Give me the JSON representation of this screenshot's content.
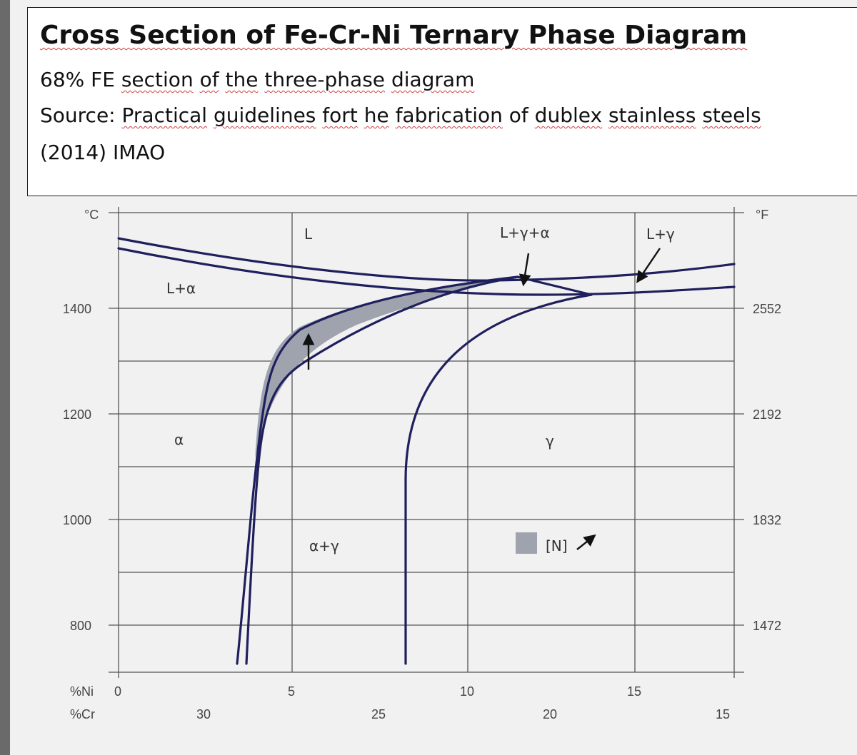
{
  "header": {
    "title": "Cross Section of Fe-Cr-Ni Ternary Phase Diagram",
    "subtitle_words": [
      "68% FE",
      "section",
      "of",
      "the",
      "three-phase",
      "diagram"
    ],
    "source_words": [
      "Source:",
      "Practical",
      "guidelines",
      "fort",
      "he",
      "fabrication",
      "of",
      "dublex",
      "stainless",
      "steels"
    ],
    "year_credit": "(2014) IMAO"
  },
  "diagram": {
    "left_unit": "°C",
    "right_unit": "°F",
    "celsius_ticks": [
      "1400",
      "1200",
      "1000",
      "800"
    ],
    "fahrenheit_ticks": [
      "2552",
      "2192",
      "1832",
      "1472"
    ],
    "ni_label": "%Ni",
    "ni_ticks": [
      "0",
      "5",
      "10",
      "15"
    ],
    "cr_label": "%Cr",
    "cr_ticks": [
      "30",
      "25",
      "20",
      "15"
    ],
    "phase_labels": {
      "liquid": "L",
      "liquid_gamma_alpha": "L+γ+α",
      "liquid_gamma": "L+γ",
      "liquid_alpha": "L+α",
      "alpha": "α",
      "gamma": "γ",
      "alpha_gamma": "α+γ"
    },
    "legend_label": "[N]",
    "colors": {
      "line": "#1f1f5e",
      "shade": "#9ea3ad",
      "grid": "#555555"
    }
  }
}
